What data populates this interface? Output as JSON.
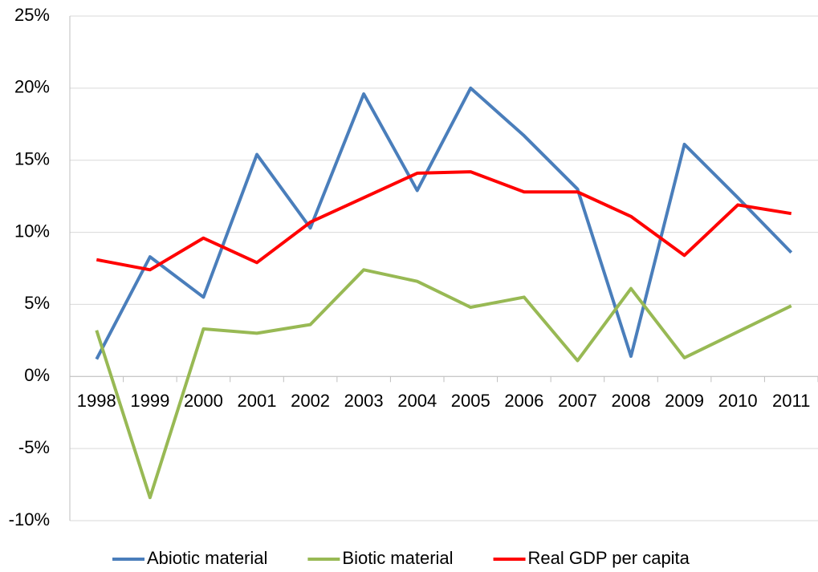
{
  "chart_data": {
    "type": "line",
    "categories": [
      "1998",
      "1999",
      "2000",
      "2001",
      "2002",
      "2003",
      "2004",
      "2005",
      "2006",
      "2007",
      "2008",
      "2009",
      "2010",
      "2011"
    ],
    "series": [
      {
        "name": "Abiotic material",
        "color": "#4a7ebb",
        "values": [
          1.2,
          8.3,
          5.5,
          15.4,
          10.3,
          19.6,
          12.9,
          20.0,
          16.7,
          13.0,
          1.4,
          16.1,
          12.4,
          8.6
        ]
      },
      {
        "name": "Biotic material",
        "color": "#98b954",
        "values": [
          3.2,
          -8.4,
          3.3,
          3.0,
          3.6,
          7.4,
          6.6,
          4.8,
          5.5,
          1.1,
          6.1,
          1.3,
          3.1,
          4.9
        ]
      },
      {
        "name": "Real GDP per capita",
        "color": "#ff0000",
        "values": [
          8.1,
          7.4,
          9.6,
          7.9,
          10.7,
          12.4,
          14.1,
          14.2,
          12.8,
          12.8,
          11.1,
          8.4,
          11.9,
          11.3
        ]
      }
    ],
    "ylim": [
      -10,
      25
    ],
    "yticks": [
      {
        "value": -10,
        "label": "-10%"
      },
      {
        "value": -5,
        "label": "-5%"
      },
      {
        "value": 0,
        "label": "0%"
      },
      {
        "value": 5,
        "label": "5%"
      },
      {
        "value": 10,
        "label": "10%"
      },
      {
        "value": 15,
        "label": "15%"
      },
      {
        "value": 20,
        "label": "20%"
      },
      {
        "value": 25,
        "label": "25%"
      }
    ],
    "grid": true,
    "legend": "bottom"
  }
}
